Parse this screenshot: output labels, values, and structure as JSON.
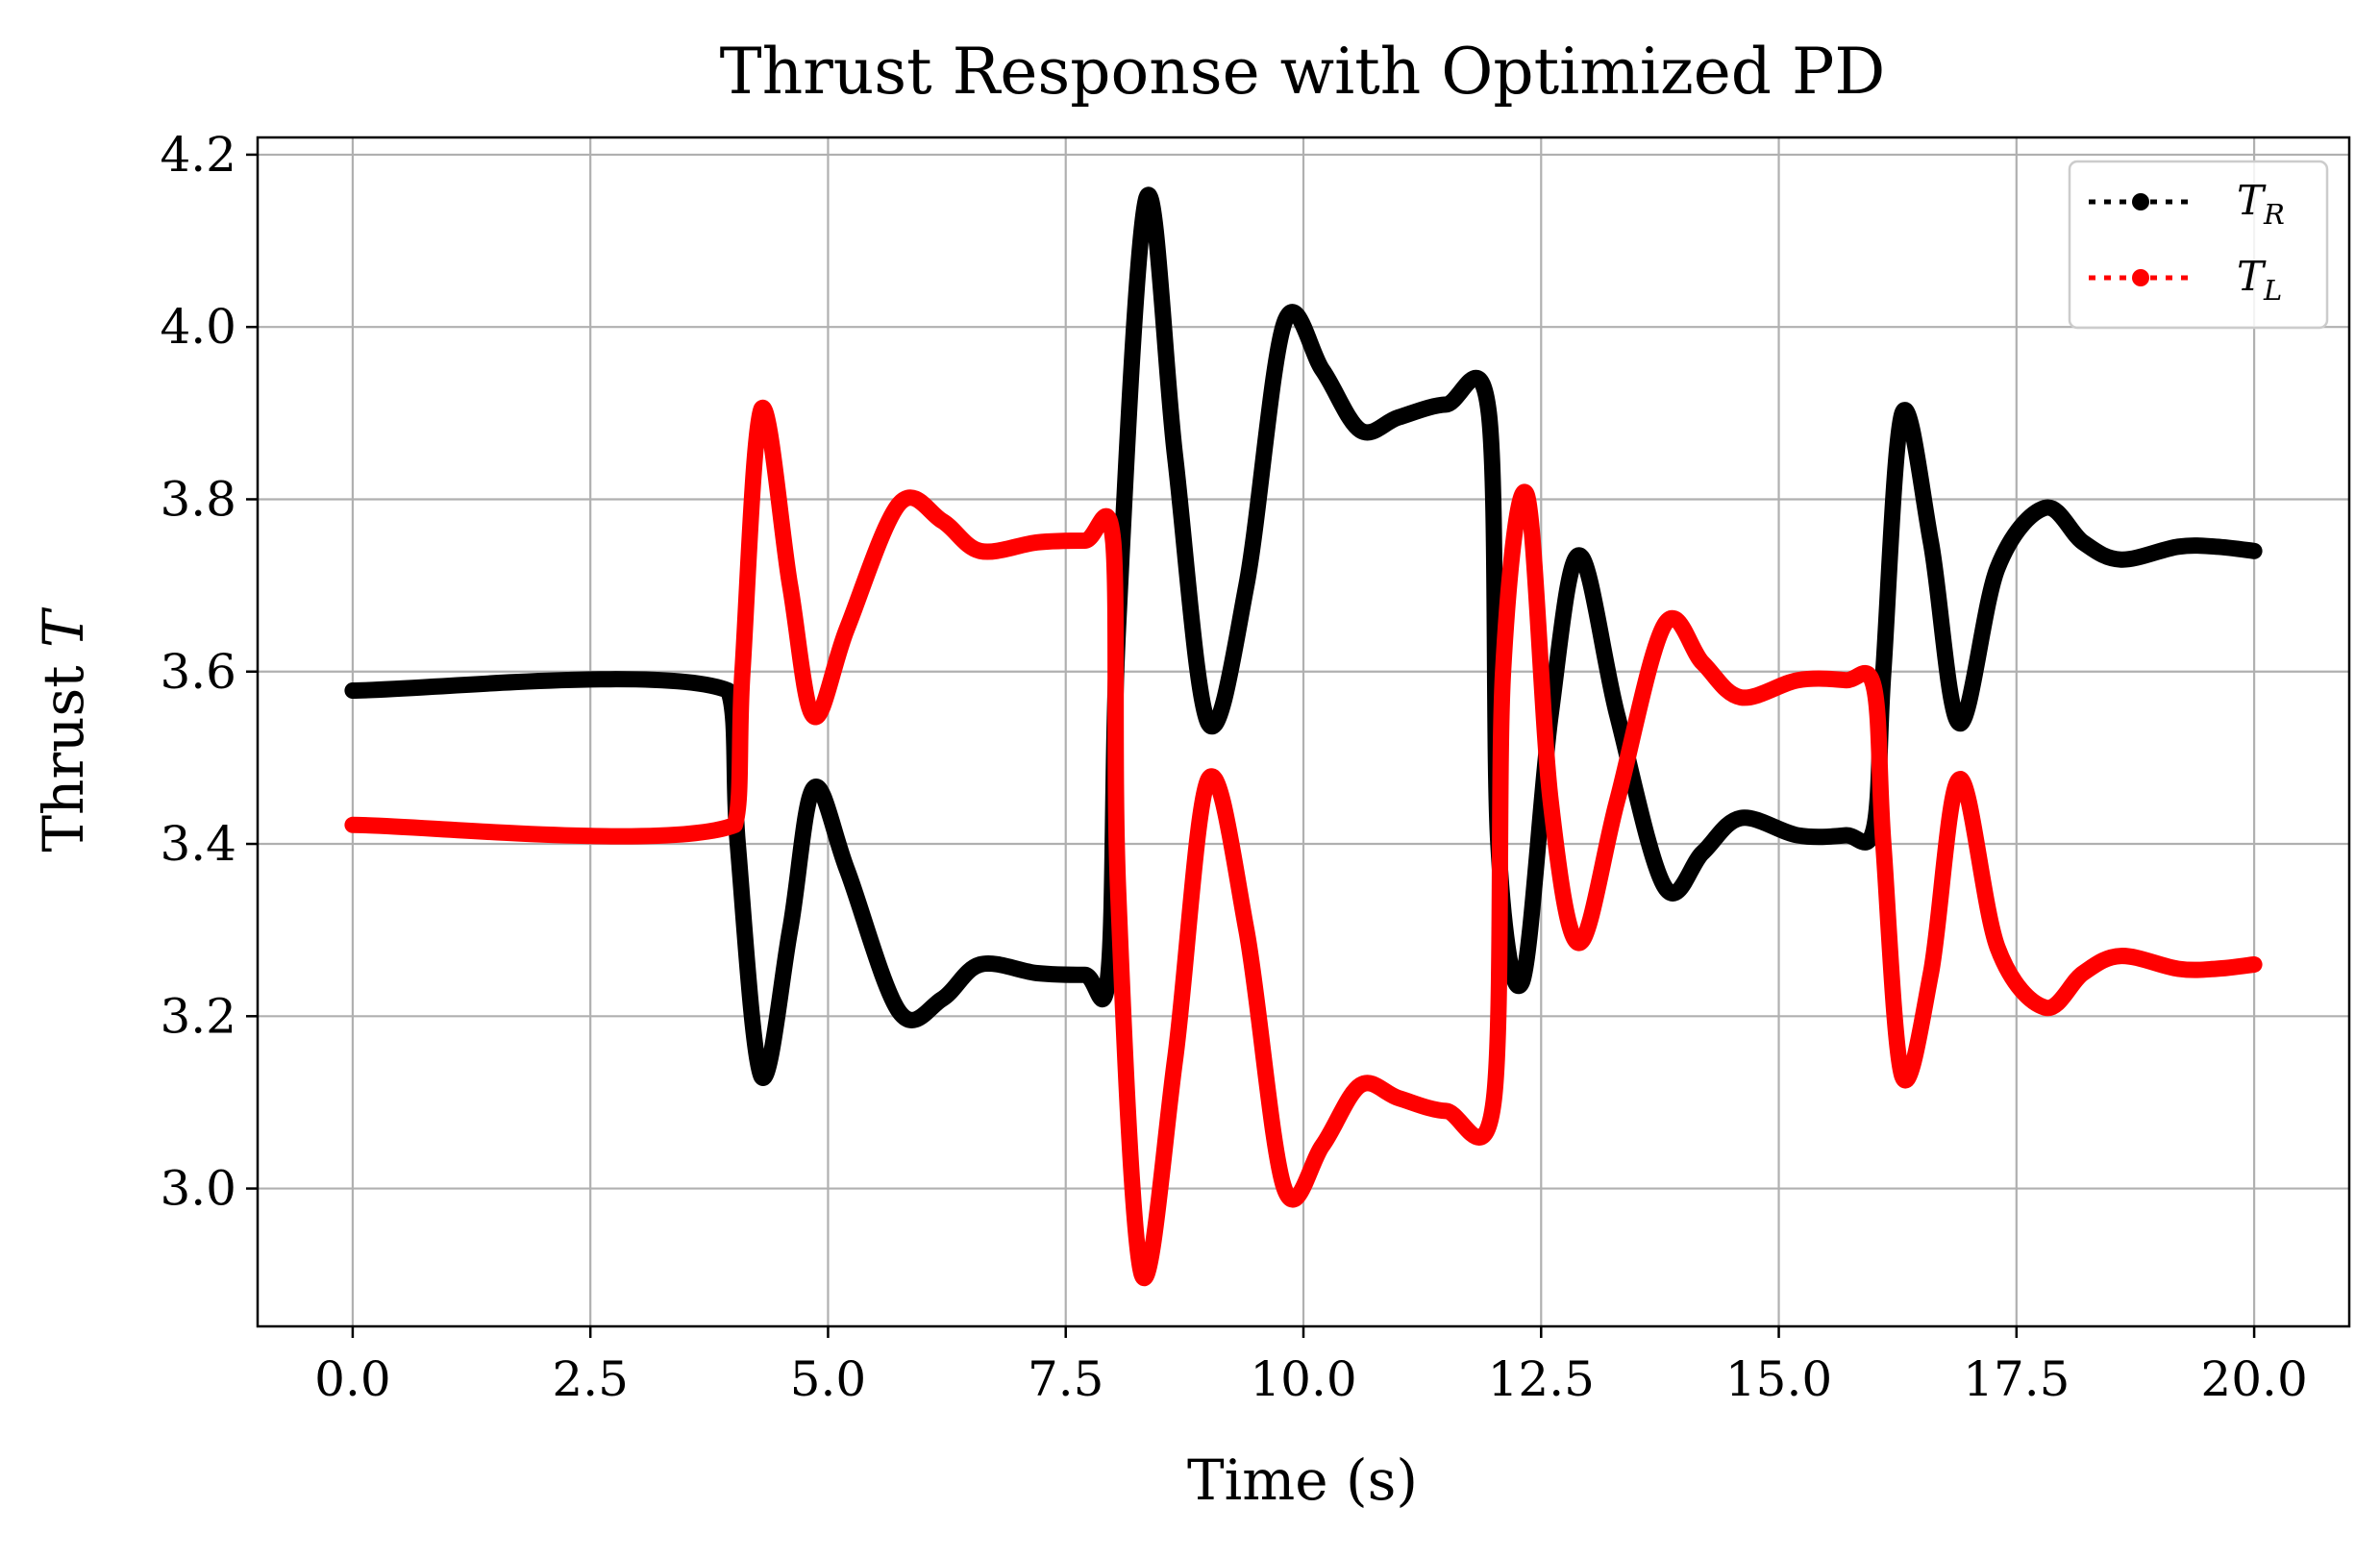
{
  "chart_data": {
    "type": "line",
    "title": "Thrust Response with Optimized PD",
    "xlabel": "Time (s)",
    "ylabel": "Thrust T",
    "ylabel_text": "Thrust ",
    "ylabel_var": "T",
    "xlim": [
      -1.0,
      21.0
    ],
    "ylim": [
      2.84,
      4.22
    ],
    "xticks": [
      0.0,
      2.5,
      5.0,
      7.5,
      10.0,
      12.5,
      15.0,
      17.5,
      20.0
    ],
    "xtick_labels": [
      "0.0",
      "2.5",
      "5.0",
      "7.5",
      "10.0",
      "12.5",
      "15.0",
      "17.5",
      "20.0"
    ],
    "yticks": [
      3.0,
      3.2,
      3.4,
      3.6,
      3.8,
      4.0,
      4.2
    ],
    "ytick_labels": [
      "3.0",
      "3.2",
      "3.4",
      "3.6",
      "3.8",
      "4.0",
      "4.2"
    ],
    "grid": true,
    "legend_position": "top-right",
    "series": [
      {
        "name": "T_R",
        "label_main": "T",
        "label_sub": "R",
        "color": "#000000",
        "x": [
          0.0,
          3.95,
          4.05,
          4.3,
          4.6,
          4.85,
          5.2,
          5.75,
          6.2,
          6.6,
          7.2,
          7.7,
          7.95,
          8.05,
          8.35,
          8.65,
          9.0,
          9.4,
          9.8,
          10.2,
          10.6,
          11.0,
          11.5,
          11.95,
          12.05,
          12.3,
          12.6,
          12.9,
          13.3,
          13.8,
          14.2,
          14.6,
          15.2,
          15.7,
          16.0,
          16.1,
          16.3,
          16.6,
          16.9,
          17.3,
          17.8,
          18.2,
          18.6,
          19.2,
          19.6,
          20.0
        ],
        "y": [
          3.578,
          3.578,
          3.4,
          3.13,
          3.3,
          3.465,
          3.37,
          3.205,
          3.22,
          3.26,
          3.25,
          3.248,
          3.25,
          3.65,
          4.15,
          3.85,
          3.54,
          3.7,
          4.005,
          3.95,
          3.88,
          3.895,
          3.91,
          3.9,
          3.4,
          3.24,
          3.55,
          3.735,
          3.55,
          3.35,
          3.39,
          3.43,
          3.41,
          3.41,
          3.418,
          3.6,
          3.9,
          3.75,
          3.54,
          3.72,
          3.79,
          3.75,
          3.73,
          3.745,
          3.745,
          3.74
        ]
      },
      {
        "name": "T_L",
        "label_main": "T",
        "label_sub": "L",
        "color": "#ff0000",
        "x": [
          0.0,
          4.02,
          4.1,
          4.3,
          4.6,
          4.85,
          5.2,
          5.75,
          6.2,
          6.6,
          7.2,
          7.7,
          8.0,
          8.05,
          8.3,
          8.65,
          9.0,
          9.4,
          9.8,
          10.2,
          10.6,
          11.0,
          11.5,
          12.0,
          12.1,
          12.35,
          12.6,
          12.9,
          13.3,
          13.8,
          14.2,
          14.6,
          15.2,
          15.7,
          16.0,
          16.1,
          16.3,
          16.6,
          16.9,
          17.3,
          17.8,
          18.2,
          18.6,
          19.2,
          19.6,
          20.0
        ],
        "y": [
          3.422,
          3.422,
          3.6,
          3.905,
          3.7,
          3.548,
          3.65,
          3.795,
          3.775,
          3.74,
          3.75,
          3.752,
          3.75,
          3.35,
          2.9,
          3.15,
          3.475,
          3.3,
          3.0,
          3.05,
          3.12,
          3.105,
          3.09,
          3.1,
          3.6,
          3.805,
          3.45,
          3.285,
          3.45,
          3.655,
          3.61,
          3.57,
          3.59,
          3.59,
          3.582,
          3.4,
          3.13,
          3.25,
          3.475,
          3.28,
          3.21,
          3.25,
          3.27,
          3.255,
          3.255,
          3.26
        ]
      }
    ]
  }
}
